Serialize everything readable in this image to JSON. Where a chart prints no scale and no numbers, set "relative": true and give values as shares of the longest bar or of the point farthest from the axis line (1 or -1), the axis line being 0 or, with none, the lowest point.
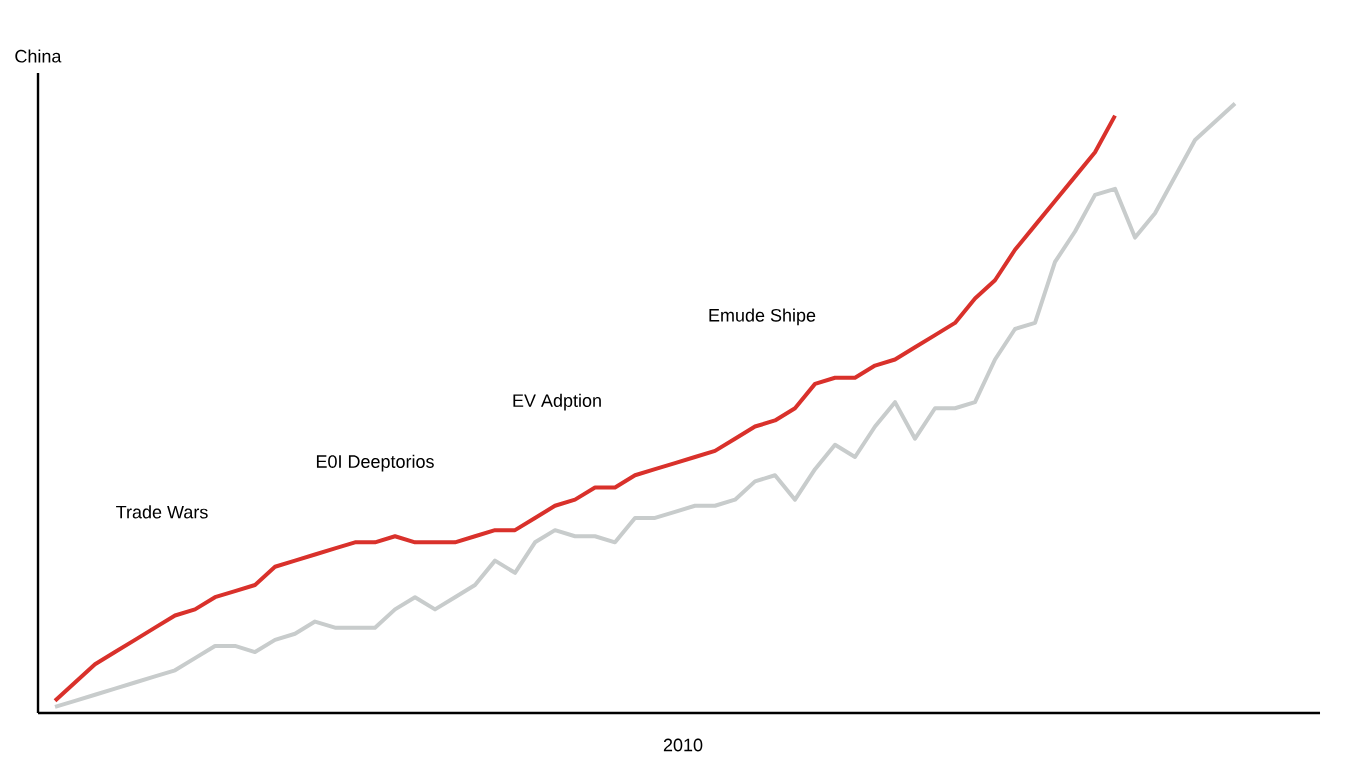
{
  "chart_data": {
    "type": "line",
    "relative": true,
    "ylabel": "China",
    "xlabel": "2010",
    "marker": "none",
    "categories": [
      null,
      null,
      null,
      null,
      null,
      null,
      null,
      null,
      null,
      null,
      null,
      null,
      null,
      null,
      null,
      null,
      null,
      null,
      null,
      null,
      null,
      null,
      null,
      null,
      null,
      null,
      null,
      null,
      null,
      null,
      null,
      null,
      null,
      null,
      null,
      null,
      null,
      null,
      null,
      null,
      null,
      null,
      null,
      null,
      null,
      null,
      null,
      null,
      null,
      null,
      null,
      null,
      null,
      null,
      null,
      null,
      null,
      null,
      null,
      null
    ],
    "series": [
      {
        "color": "#d9312b",
        "values": [
          0.02,
          0.05,
          0.08,
          0.1,
          0.12,
          0.14,
          0.16,
          0.17,
          0.19,
          0.2,
          0.21,
          0.24,
          0.25,
          0.26,
          0.27,
          0.28,
          0.28,
          0.29,
          0.28,
          0.28,
          0.28,
          0.29,
          0.3,
          0.3,
          0.32,
          0.34,
          0.35,
          0.37,
          0.37,
          0.39,
          0.4,
          0.41,
          0.42,
          0.43,
          0.45,
          0.47,
          0.48,
          0.5,
          0.54,
          0.55,
          0.55,
          0.57,
          0.58,
          0.6,
          0.62,
          0.64,
          0.68,
          0.71,
          0.76,
          0.8,
          0.84,
          0.88,
          0.92,
          0.98,
          null,
          null,
          null,
          null,
          null,
          null
        ]
      },
      {
        "color": "#c8cccc",
        "values": [
          0.01,
          0.02,
          0.03,
          0.04,
          0.05,
          0.06,
          0.07,
          0.09,
          0.11,
          0.11,
          0.1,
          0.12,
          0.13,
          0.15,
          0.14,
          0.14,
          0.14,
          0.17,
          0.19,
          0.17,
          0.19,
          0.21,
          0.25,
          0.23,
          0.28,
          0.3,
          0.29,
          0.29,
          0.28,
          0.32,
          0.32,
          0.33,
          0.34,
          0.34,
          0.35,
          0.38,
          0.39,
          0.35,
          0.4,
          0.44,
          0.42,
          0.47,
          0.51,
          0.45,
          0.5,
          0.5,
          0.51,
          0.58,
          0.63,
          0.64,
          0.74,
          0.79,
          0.85,
          0.86,
          0.78,
          0.82,
          0.88,
          0.94,
          0.97,
          1
        ]
      }
    ],
    "annotations": [
      "Trade Wars",
      "E0I Deeptorios",
      "EV Adption",
      "Emude Shipe"
    ]
  }
}
